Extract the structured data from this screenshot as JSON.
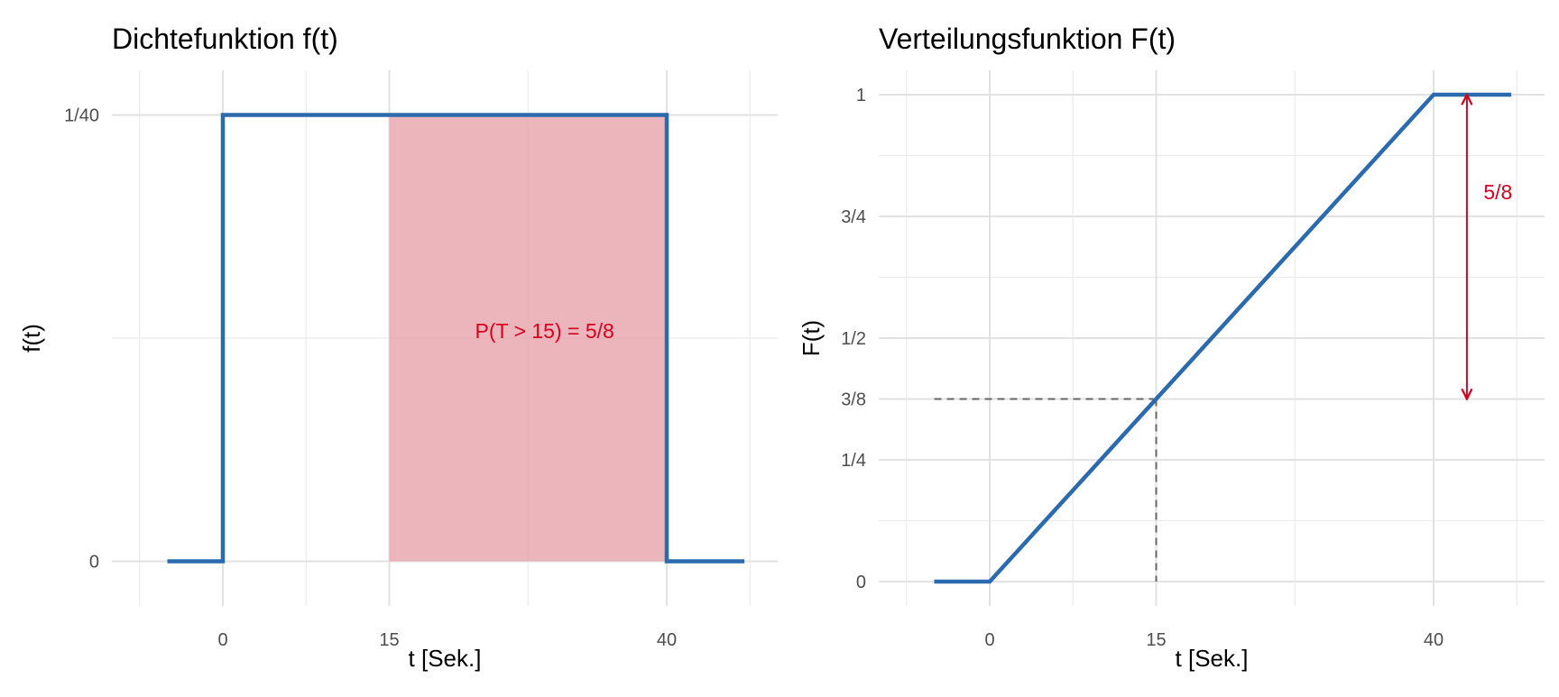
{
  "chart_data": [
    {
      "type": "line",
      "title": "Dichtefunktion f(t)",
      "xlabel": "t [Sek.]",
      "ylabel": "f(t)",
      "xlim": [
        -10,
        50
      ],
      "ylim": [
        -0.0025,
        0.0275
      ],
      "x_ticks": [
        {
          "value": 0,
          "label": "0"
        },
        {
          "value": 15,
          "label": "15"
        },
        {
          "value": 40,
          "label": "40"
        }
      ],
      "y_ticks": [
        {
          "value": 0,
          "label": "0"
        },
        {
          "value": 0.025,
          "label": "1/40"
        }
      ],
      "x_minor_grid": [
        -7.5,
        7.5,
        27.5,
        47.5
      ],
      "y_minor_grid": [
        0.0125
      ],
      "grid": true,
      "series": [
        {
          "points": [
            [
              -5,
              0
            ],
            [
              0,
              0
            ],
            [
              0,
              0.025
            ],
            [
              40,
              0.025
            ],
            [
              40,
              0
            ],
            [
              47,
              0
            ]
          ],
          "color": "#2B6AAE"
        }
      ],
      "shaded_region": {
        "x_from": 15,
        "x_to": 40,
        "y": 0.025,
        "color": "#E6A0A8"
      },
      "annotations": [
        {
          "text": "P(T > 15) = 5/8",
          "x": 29,
          "y": 0.0129,
          "color": "#D7001E"
        }
      ]
    },
    {
      "type": "line",
      "title": "Verteilungsfunktion F(t)",
      "xlabel": "t [Sek.]",
      "ylabel": "F(t)",
      "xlim": [
        -10,
        50
      ],
      "ylim": [
        -0.05,
        1.05
      ],
      "x_ticks": [
        {
          "value": 0,
          "label": "0"
        },
        {
          "value": 15,
          "label": "15"
        },
        {
          "value": 40,
          "label": "40"
        }
      ],
      "y_ticks": [
        {
          "value": 0,
          "label": "0"
        },
        {
          "value": 0.25,
          "label": "1/4"
        },
        {
          "value": 0.375,
          "label": "3/8"
        },
        {
          "value": 0.5,
          "label": "1/2"
        },
        {
          "value": 0.75,
          "label": "3/4"
        },
        {
          "value": 1,
          "label": "1"
        }
      ],
      "x_minor_grid": [
        -7.5,
        7.5,
        27.5,
        47.5
      ],
      "y_minor_grid": [
        0.125,
        0.375,
        0.625,
        0.875
      ],
      "grid": true,
      "series": [
        {
          "points": [
            [
              -5,
              0
            ],
            [
              0,
              0
            ],
            [
              40,
              1
            ],
            [
              47,
              1
            ]
          ],
          "color": "#2B6AAE"
        }
      ],
      "reference_lines": [
        {
          "points": [
            [
              -5,
              0.375
            ],
            [
              15,
              0.375
            ]
          ],
          "style": "dashed",
          "color": "#666666"
        },
        {
          "points": [
            [
              15,
              0.375
            ],
            [
              15,
              0
            ]
          ],
          "style": "dashed",
          "color": "#666666"
        }
      ],
      "arrow": {
        "x": 43,
        "y_from": 1,
        "y_to": 0.375,
        "color": "#D7001E"
      },
      "annotations": [
        {
          "text": "5/8",
          "x": 45.8,
          "y": 0.8,
          "color": "#D7001E"
        }
      ]
    }
  ]
}
